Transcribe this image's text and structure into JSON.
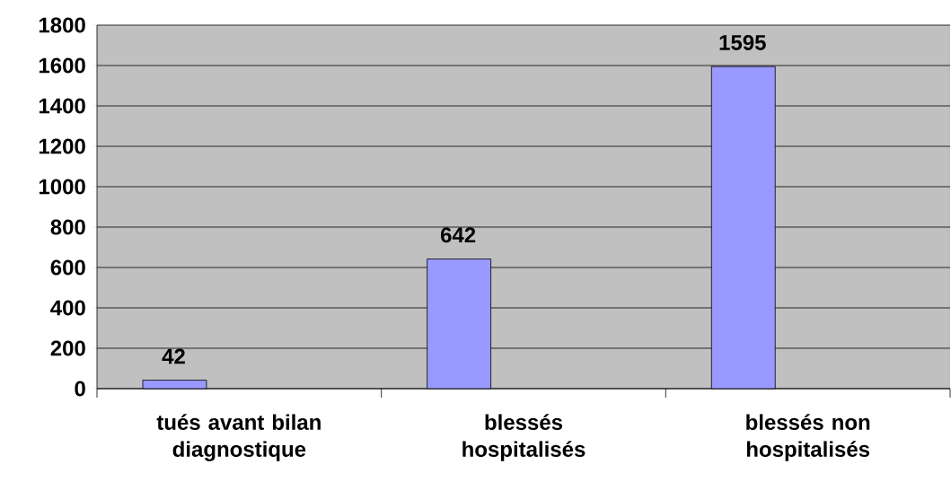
{
  "chart_data": {
    "type": "bar",
    "categories": [
      "tués avant bilan diagnostique",
      "blessés hospitalisés",
      "blessés non hospitalisés"
    ],
    "values": [
      42,
      642,
      1595
    ],
    "color": "#9999ff",
    "ylim": [
      0,
      1800
    ],
    "yticks": [
      0,
      200,
      400,
      600,
      800,
      1000,
      1200,
      1400,
      1600,
      1800
    ],
    "grid": "y",
    "data_labels": true
  }
}
